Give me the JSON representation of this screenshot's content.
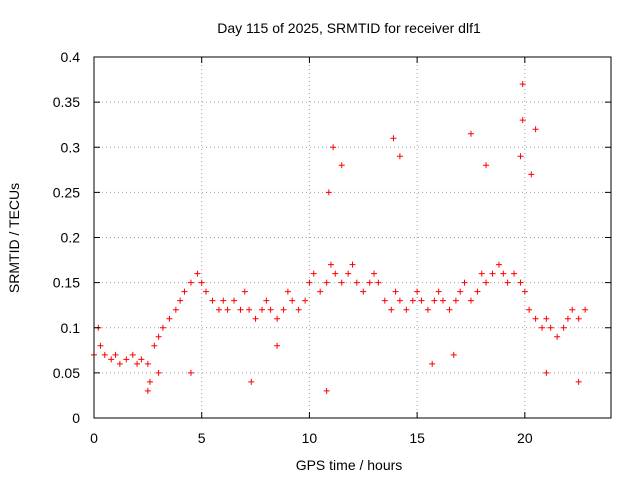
{
  "chart_data": {
    "type": "scatter",
    "title": "Day 115 of 2025, SRMTID for receiver dlf1",
    "xlabel": "GPS time / hours",
    "ylabel": "SRMTID / TECUs",
    "xlim": [
      0,
      24
    ],
    "ylim": [
      0,
      0.4
    ],
    "xticks": [
      0,
      5,
      10,
      15,
      20
    ],
    "xtick_labels": [
      "0",
      "5",
      "10",
      "15",
      "20"
    ],
    "yticks": [
      0,
      0.05,
      0.1,
      0.15,
      0.2,
      0.25,
      0.3,
      0.35,
      0.4
    ],
    "ytick_labels": [
      "0",
      "0.05",
      "0.1",
      "0.15",
      "0.2",
      "0.25",
      "0.3",
      "0.35",
      "0.4"
    ],
    "grid": true,
    "marker": "+",
    "color": "#ff0000",
    "series": [
      {
        "name": "SRMTID",
        "x": [
          0.0,
          0.3,
          0.5,
          0.8,
          1.0,
          1.2,
          1.5,
          1.8,
          2.0,
          2.2,
          2.5,
          2.8,
          3.0,
          3.2,
          3.5,
          3.8,
          4.0,
          4.2,
          4.5,
          4.8,
          5.0,
          5.2,
          5.5,
          5.8,
          6.0,
          6.2,
          6.5,
          6.8,
          7.0,
          7.2,
          7.5,
          7.8,
          8.0,
          8.2,
          8.5,
          8.8,
          9.0,
          9.2,
          9.5,
          9.8,
          10.0,
          10.2,
          10.5,
          10.8,
          11.0,
          11.2,
          11.5,
          11.8,
          12.0,
          12.2,
          12.5,
          12.8,
          13.0,
          13.2,
          13.5,
          13.8,
          14.0,
          14.2,
          14.5,
          14.8,
          15.0,
          15.2,
          15.5,
          15.8,
          16.0,
          16.2,
          16.5,
          16.8,
          17.0,
          17.2,
          17.5,
          17.8,
          18.0,
          18.2,
          18.5,
          18.8,
          19.0,
          19.2,
          19.5,
          19.8,
          20.0,
          20.2,
          20.5,
          20.8,
          21.0,
          21.2,
          21.5,
          21.8,
          22.0,
          22.2,
          22.5,
          22.8,
          2.5,
          11.1,
          11.5,
          13.9,
          14.2,
          17.5,
          18.2,
          19.9,
          20.5,
          19.9,
          20.3,
          0.2,
          2.6,
          22.5,
          10.8,
          10.9,
          19.8,
          21.0,
          3.0,
          4.5,
          7.3,
          8.5,
          16.7,
          15.7
        ],
        "y": [
          0.07,
          0.08,
          0.07,
          0.065,
          0.07,
          0.06,
          0.065,
          0.07,
          0.06,
          0.065,
          0.06,
          0.08,
          0.09,
          0.1,
          0.11,
          0.12,
          0.13,
          0.14,
          0.15,
          0.16,
          0.15,
          0.14,
          0.13,
          0.12,
          0.13,
          0.12,
          0.13,
          0.12,
          0.14,
          0.12,
          0.11,
          0.12,
          0.13,
          0.12,
          0.11,
          0.12,
          0.14,
          0.13,
          0.12,
          0.13,
          0.15,
          0.16,
          0.14,
          0.15,
          0.17,
          0.16,
          0.15,
          0.16,
          0.17,
          0.15,
          0.14,
          0.15,
          0.16,
          0.15,
          0.13,
          0.12,
          0.14,
          0.13,
          0.12,
          0.13,
          0.14,
          0.13,
          0.12,
          0.13,
          0.14,
          0.13,
          0.12,
          0.13,
          0.14,
          0.15,
          0.13,
          0.14,
          0.16,
          0.15,
          0.16,
          0.17,
          0.16,
          0.15,
          0.16,
          0.15,
          0.14,
          0.12,
          0.11,
          0.1,
          0.11,
          0.1,
          0.09,
          0.1,
          0.11,
          0.12,
          0.11,
          0.12,
          0.03,
          0.3,
          0.28,
          0.31,
          0.29,
          0.315,
          0.28,
          0.37,
          0.32,
          0.33,
          0.27,
          0.1,
          0.04,
          0.04,
          0.03,
          0.25,
          0.29,
          0.05,
          0.05,
          0.05,
          0.04,
          0.08,
          0.07,
          0.06
        ]
      }
    ]
  }
}
